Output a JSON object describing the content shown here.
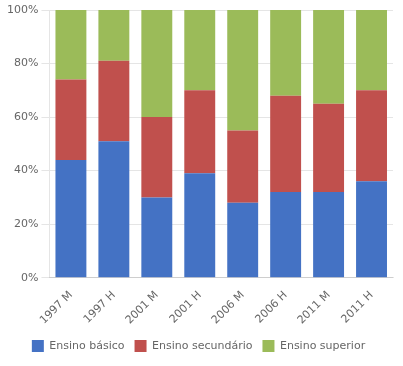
{
  "chart_data": {
    "type": "bar",
    "stacked": true,
    "categories": [
      "1997 M",
      "1997 H",
      "2001 M",
      "2001 H",
      "2006 M",
      "2006 H",
      "2011 M",
      "2011 H"
    ],
    "series": [
      {
        "name": "Ensino básico",
        "color": "#4472C4",
        "values": [
          44.0,
          51.0,
          30.0,
          39.0,
          28.0,
          32.0,
          32.0,
          36.0
        ]
      },
      {
        "name": "Ensino secundário",
        "color": "#C0504D",
        "values": [
          30.0,
          30.0,
          30.0,
          31.0,
          27.0,
          36.0,
          33.0,
          34.0
        ]
      },
      {
        "name": "Ensino superior",
        "color": "#9BBB59",
        "values": [
          26.0,
          19.0,
          40.0,
          30.0,
          45.0,
          32.0,
          35.0,
          30.0
        ]
      }
    ],
    "ylim": [
      0,
      100
    ],
    "yticks": [
      {
        "value": 0,
        "label": "0%"
      },
      {
        "value": 20,
        "label": "20%"
      },
      {
        "value": 40,
        "label": "40%"
      },
      {
        "value": 60,
        "label": "60%"
      },
      {
        "value": 80,
        "label": "80%"
      },
      {
        "value": 100,
        "label": "100%"
      }
    ],
    "grid": true,
    "legend": "bottom"
  }
}
